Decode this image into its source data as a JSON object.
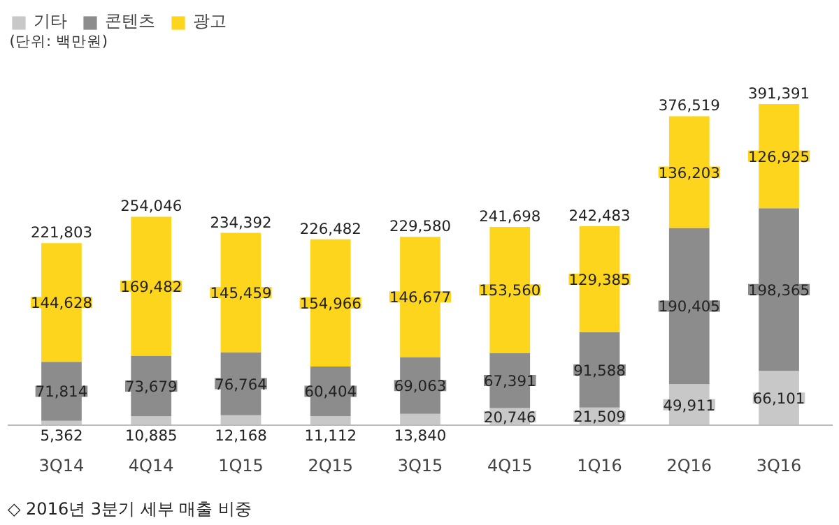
{
  "chart_data": {
    "type": "bar",
    "stacked": true,
    "subtitle": "(단위: 백만원)",
    "categories": [
      "3Q14",
      "4Q14",
      "1Q15",
      "2Q15",
      "3Q15",
      "4Q15",
      "1Q16",
      "2Q16",
      "3Q16"
    ],
    "series": [
      {
        "name": "기타",
        "color": "#c8c8c8",
        "values": [
          5362,
          10885,
          12168,
          11112,
          13840,
          20746,
          21509,
          49911,
          66101
        ],
        "value_labels": [
          "5,362",
          "10,885",
          "12,168",
          "11,112",
          "13,840",
          "20,746",
          "21,509",
          "49,911",
          "66,101"
        ]
      },
      {
        "name": "콘텐츠",
        "color": "#8c8c8c",
        "values": [
          71814,
          73679,
          76764,
          60404,
          69063,
          67391,
          91588,
          190405,
          198365
        ],
        "value_labels": [
          "71,814",
          "73,679",
          "76,764",
          "60,404",
          "69,063",
          "67,391",
          "91,588",
          "190,405",
          "198,365"
        ]
      },
      {
        "name": "광고",
        "color": "#fdd51d",
        "values": [
          144628,
          169482,
          145459,
          154966,
          146677,
          153560,
          129385,
          136203,
          126925
        ],
        "value_labels": [
          "144,628",
          "169,482",
          "145,459",
          "154,966",
          "146,677",
          "153,560",
          "129,385",
          "136,203",
          "126,925"
        ]
      }
    ],
    "totals": [
      "221,803",
      "254,046",
      "234,392",
      "226,482",
      "229,580",
      "241,698",
      "242,483",
      "376,519",
      "391,391"
    ],
    "legend": "top left",
    "grid": false,
    "annotations": [
      "◇ 2016년 3분기 세부 매출 비중"
    ]
  }
}
